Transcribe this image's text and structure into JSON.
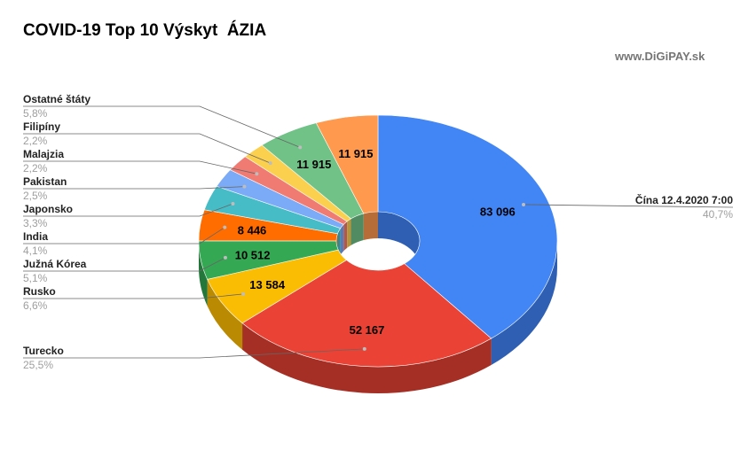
{
  "title": "COVID-19 Top 10 Výskyt  ÁZIA",
  "watermark": "www.DiGiPAY.sk",
  "chart_data": {
    "type": "pie",
    "style": "3d-donut",
    "legend": "none",
    "slices": [
      {
        "label": "Čína 12.4.2020  7:00",
        "value": 83096,
        "value_label": "83 096",
        "percent": "40,7%",
        "color": "#4285f4",
        "shade": "#2f5fb3"
      },
      {
        "label": "Turecko",
        "value": 52167,
        "value_label": "52 167",
        "percent": "25,5%",
        "color": "#ea4335",
        "shade": "#a52f25"
      },
      {
        "label": "Rusko",
        "value": 13584,
        "value_label": "13 584",
        "percent": "6,6%",
        "color": "#fbbc04",
        "shade": "#b98a02"
      },
      {
        "label": "Južná Kórea",
        "value": 10512,
        "value_label": "10 512",
        "percent": "5,1%",
        "color": "#34a853",
        "shade": "#24773a"
      },
      {
        "label": "India",
        "value": 8446,
        "value_label": "8 446",
        "percent": "4,1%",
        "color": "#ff6d01",
        "shade": "#b74e00"
      },
      {
        "label": "Japonsko",
        "value": 6748,
        "value_label": "",
        "percent": "3,3%",
        "color": "#46bdc6",
        "shade": "#318a91"
      },
      {
        "label": "Pakistan",
        "value": 5105,
        "value_label": "",
        "percent": "2,5%",
        "color": "#7baaf7",
        "shade": "#577bb4"
      },
      {
        "label": "Malajzia",
        "value": 4530,
        "value_label": "",
        "percent": "2,2%",
        "color": "#f07b72",
        "shade": "#ad5851"
      },
      {
        "label": "Filipíny",
        "value": 4428,
        "value_label": "",
        "percent": "2,2%",
        "color": "#fcd04f",
        "shade": "#b5953a"
      },
      {
        "label": "Ostatné štáty",
        "value": 11915,
        "value_label": "11 915",
        "percent": "5,8%",
        "color": "#71c287",
        "shade": "#508b61"
      },
      {
        "label": "",
        "value": 11915,
        "value_label": "11 915",
        "percent": "",
        "color": "#ff994d",
        "shade": "#b76d37"
      }
    ]
  }
}
